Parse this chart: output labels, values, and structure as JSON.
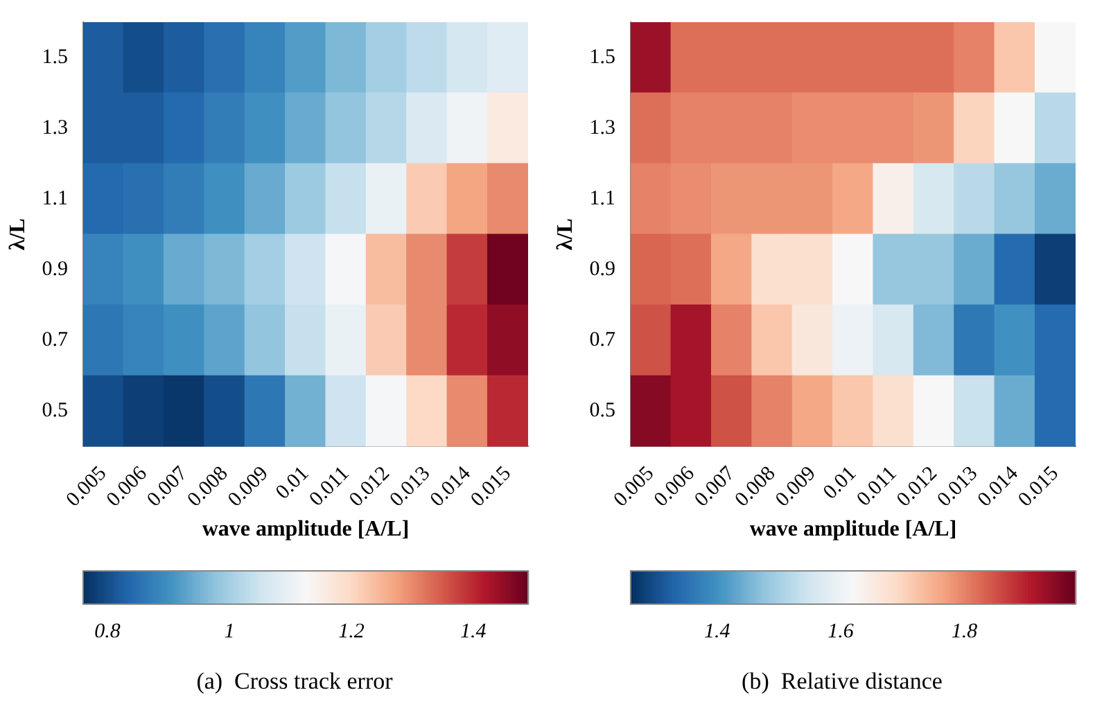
{
  "chart_data": [
    {
      "type": "heatmap",
      "title": "(a)  Cross track error",
      "xlabel": "wave amplitude [A/L]",
      "ylabel": "λ/L",
      "categories": [
        "0.005",
        "0.006",
        "0.007",
        "0.008",
        "0.009",
        "0.01",
        "0.011",
        "0.012",
        "0.013",
        "0.014",
        "0.015"
      ],
      "y_categories": [
        "1.5",
        "1.3",
        "1.1",
        "0.9",
        "0.7",
        "0.5"
      ],
      "cells": [
        [
          0.82,
          0.8,
          0.82,
          0.85,
          0.88,
          0.92,
          0.96,
          1.0,
          1.03,
          1.06,
          1.08
        ],
        [
          0.82,
          0.82,
          0.84,
          0.87,
          0.9,
          0.94,
          0.98,
          1.02,
          1.07,
          1.11,
          1.16
        ],
        [
          0.84,
          0.85,
          0.87,
          0.9,
          0.94,
          0.99,
          1.04,
          1.1,
          1.22,
          1.27,
          1.3
        ],
        [
          0.88,
          0.9,
          0.94,
          0.96,
          1.0,
          1.05,
          1.12,
          1.24,
          1.3,
          1.38,
          1.48
        ],
        [
          0.86,
          0.88,
          0.9,
          0.93,
          0.98,
          1.04,
          1.1,
          1.22,
          1.3,
          1.4,
          1.45
        ],
        [
          0.8,
          0.78,
          0.77,
          0.8,
          0.86,
          0.95,
          1.05,
          1.12,
          1.2,
          1.3,
          1.4
        ]
      ],
      "clim": [
        0.76,
        1.49
      ],
      "cticks": [
        0.8,
        1,
        1.2,
        1.4
      ]
    },
    {
      "type": "heatmap",
      "title": "(b)  Relative distance",
      "xlabel": "wave amplitude [A/L]",
      "ylabel": "λ/L",
      "categories": [
        "0.005",
        "0.006",
        "0.007",
        "0.008",
        "0.009",
        "0.01",
        "0.011",
        "0.012",
        "0.013",
        "0.014",
        "0.015"
      ],
      "y_categories": [
        "1.5",
        "1.3",
        "1.1",
        "0.9",
        "0.7",
        "0.5"
      ],
      "cells": [
        [
          1.93,
          1.82,
          1.82,
          1.82,
          1.82,
          1.82,
          1.82,
          1.82,
          1.8,
          1.72,
          1.62
        ],
        [
          1.82,
          1.8,
          1.8,
          1.8,
          1.79,
          1.79,
          1.79,
          1.78,
          1.7,
          1.62,
          1.52
        ],
        [
          1.8,
          1.79,
          1.78,
          1.78,
          1.78,
          1.76,
          1.64,
          1.56,
          1.52,
          1.48,
          1.44
        ],
        [
          1.83,
          1.82,
          1.76,
          1.68,
          1.68,
          1.62,
          1.48,
          1.48,
          1.44,
          1.34,
          1.28
        ],
        [
          1.85,
          1.92,
          1.8,
          1.72,
          1.66,
          1.6,
          1.56,
          1.46,
          1.36,
          1.4,
          1.34
        ],
        [
          1.95,
          1.92,
          1.85,
          1.8,
          1.76,
          1.72,
          1.68,
          1.62,
          1.54,
          1.44,
          1.34
        ]
      ],
      "clim": [
        1.26,
        1.98
      ],
      "cticks": [
        1.4,
        1.6,
        1.8
      ]
    }
  ]
}
